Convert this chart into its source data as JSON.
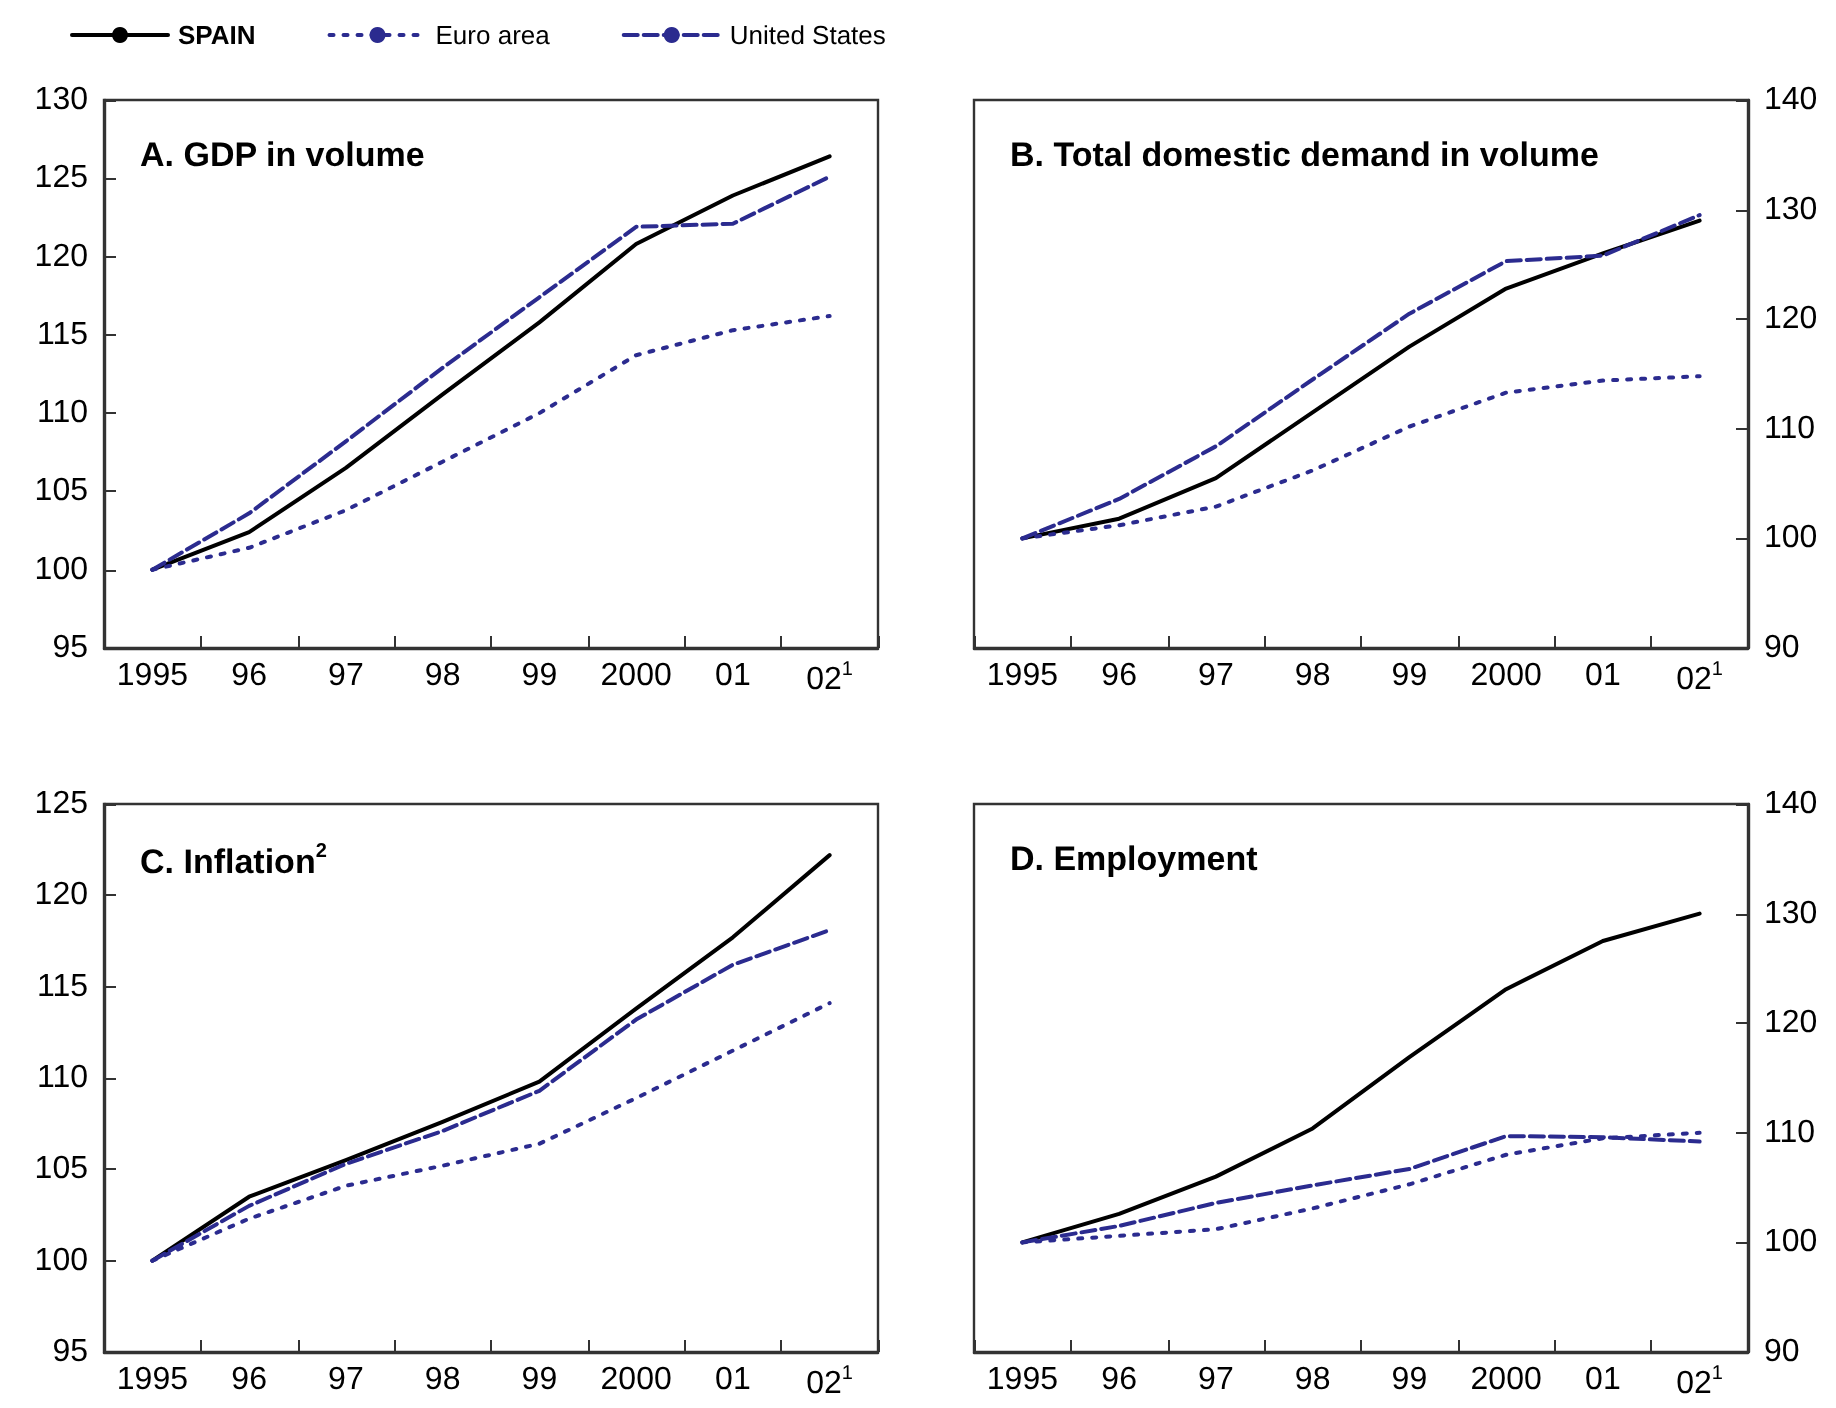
{
  "chart_data": [
    {
      "type": "line",
      "title": "A. GDP in volume",
      "categories": [
        "1995",
        "96",
        "97",
        "98",
        "99",
        "2000",
        "01",
        "02$^{1}$"
      ],
      "ylim": [
        95,
        130
      ],
      "yticks": [
        95,
        100,
        105,
        110,
        115,
        120,
        125,
        130
      ],
      "marker": "none",
      "legend": "top",
      "series": [
        {
          "name": "SPAIN",
          "color": "#000000",
          "line_style": "solid",
          "values": [
            100,
            102.4,
            106.5,
            111.2,
            115.8,
            120.8,
            123.9,
            126.4
          ]
        },
        {
          "name": "Euro area",
          "color": "#2b2b8f",
          "line_style": "dotted",
          "values": [
            100,
            101.4,
            103.8,
            106.9,
            110,
            113.7,
            115.3,
            116.2
          ]
        },
        {
          "name": "United States",
          "color": "#2b2b8f",
          "line_style": "dashed",
          "values": [
            100,
            103.6,
            108.2,
            112.9,
            117.4,
            121.9,
            122.1,
            125.1
          ]
        }
      ]
    },
    {
      "type": "line",
      "title": "B. Total domestic demand in volume",
      "categories": [
        "1995",
        "96",
        "97",
        "98",
        "99",
        "2000",
        "01",
        "02$^{1}$"
      ],
      "ylim": [
        90,
        140
      ],
      "yticks": [
        90,
        100,
        110,
        120,
        130,
        140
      ],
      "marker": "none",
      "series": [
        {
          "color": "#000000",
          "line_style": "solid",
          "values": [
            100,
            101.8,
            105.5,
            111.5,
            117.5,
            122.8,
            126,
            129
          ]
        },
        {
          "color": "#2b2b8f",
          "line_style": "dotted",
          "values": [
            100,
            101.2,
            102.9,
            106.2,
            110.2,
            113.3,
            114.4,
            114.8
          ]
        },
        {
          "color": "#2b2b8f",
          "line_style": "dashed",
          "values": [
            100,
            103.6,
            108.4,
            114.5,
            120.5,
            125.3,
            125.8,
            129.5
          ]
        }
      ]
    },
    {
      "type": "line",
      "title": "C. Inflation$^{2}$",
      "categories": [
        "1995",
        "96",
        "97",
        "98",
        "99",
        "2000",
        "01",
        "02$^{1}$"
      ],
      "ylim": [
        95,
        125
      ],
      "yticks": [
        95,
        100,
        105,
        110,
        115,
        120,
        125
      ],
      "marker": "none",
      "series": [
        {
          "color": "#000000",
          "line_style": "solid",
          "values": [
            100,
            103.5,
            105.5,
            107.6,
            109.8,
            113.8,
            117.7,
            122.2
          ]
        },
        {
          "color": "#2b2b8f",
          "line_style": "dotted",
          "values": [
            100,
            102.3,
            104.1,
            105.2,
            106.4,
            108.9,
            111.5,
            114.1
          ]
        },
        {
          "color": "#2b2b8f",
          "line_style": "dashed",
          "values": [
            100,
            103,
            105.3,
            107.1,
            109.3,
            113.2,
            116.2,
            118.1
          ]
        }
      ]
    },
    {
      "type": "line",
      "title": "D. Employment",
      "categories": [
        "1995",
        "96",
        "97",
        "98",
        "99",
        "2000",
        "01",
        "02$^{1}$"
      ],
      "ylim": [
        90,
        140
      ],
      "yticks": [
        90,
        100,
        110,
        120,
        130,
        140
      ],
      "marker": "none",
      "series": [
        {
          "color": "#000000",
          "line_style": "solid",
          "values": [
            100,
            102.6,
            106,
            110.4,
            116.9,
            123.1,
            127.5,
            130
          ]
        },
        {
          "color": "#2b2b8f",
          "line_style": "dotted",
          "values": [
            100,
            100.6,
            101.2,
            103.1,
            105.3,
            108,
            109.5,
            110
          ]
        },
        {
          "color": "#2b2b8f",
          "line_style": "dashed",
          "values": [
            100,
            101.5,
            103.6,
            105.2,
            106.7,
            109.7,
            109.6,
            109.2
          ]
        }
      ]
    }
  ]
}
